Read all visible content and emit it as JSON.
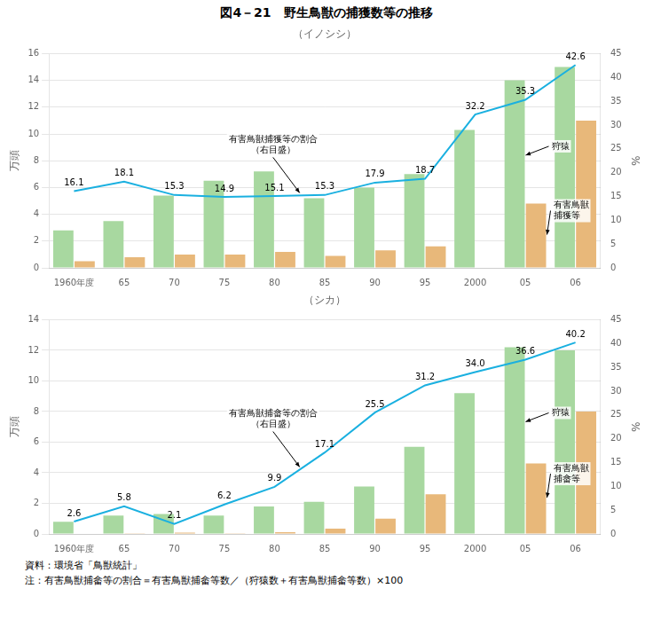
{
  "title": "図4－21　野生鳥獣の捕獲数等の推移",
  "source": "資料：環境省「鳥獣統計」",
  "note": "注：有害鳥獣捕畲等の割合＝有害鳥獣捕畲等数／（狩猿数＋有害鳥獣捕畲等数）×100",
  "chart_data": [
    {
      "type": "bar",
      "subtitle": "（イノシシ）",
      "ylabel": "万頭",
      "y2label": "%",
      "categories": [
        "1960年度",
        "65",
        "70",
        "75",
        "80",
        "85",
        "90",
        "95",
        "2000",
        "05",
        "06"
      ],
      "series": [
        {
          "color": "#a8d8a0",
          "values": [
            2.8,
            3.5,
            5.4,
            6.5,
            7.2,
            5.2,
            6.0,
            7.0,
            10.3,
            14.0,
            15.0
          ]
        },
        {
          "color": "#e8b87a",
          "values": [
            0.5,
            0.8,
            1.0,
            1.0,
            1.2,
            0.9,
            1.3,
            1.6,
            null,
            4.8,
            11.0
          ]
        },
        {
          "type": "line",
          "axis": "y2",
          "color": "#1ab0e0",
          "marker": "none",
          "data_labels": true,
          "values": [
            16.1,
            18.1,
            15.3,
            14.9,
            15.1,
            15.3,
            17.9,
            18.7,
            32.2,
            35.3,
            42.6
          ],
          "value_labels": [
            "16.1",
            "18.1",
            "15.3",
            "14.9",
            "15.1",
            "15.3",
            "17.9",
            "18.7",
            "32.2",
            "35.3",
            "42.6"
          ]
        }
      ],
      "ylim": [
        0,
        16
      ],
      "yticks": [
        0,
        2,
        4,
        6,
        8,
        10,
        12,
        14,
        16
      ],
      "y2lim": [
        0,
        45
      ],
      "y2ticks": [
        0,
        5,
        10,
        15,
        20,
        25,
        30,
        35,
        40,
        45
      ],
      "grid": true,
      "annotations": [
        "有害鳥獣捕獲等の割合\n（右目盛）",
        "狩猿",
        "有害鳥獣\n捕獲等"
      ]
    },
    {
      "type": "bar",
      "subtitle": "（シカ）",
      "ylabel": "万頭",
      "y2label": "%",
      "categories": [
        "1960年度",
        "65",
        "70",
        "75",
        "80",
        "85",
        "90",
        "95",
        "2000",
        "05",
        "06"
      ],
      "series": [
        {
          "color": "#a8d8a0",
          "values": [
            0.8,
            1.2,
            1.3,
            1.2,
            1.8,
            2.1,
            3.1,
            5.7,
            9.2,
            12.2,
            12.0
          ]
        },
        {
          "color": "#e8b87a",
          "values": [
            null,
            0.05,
            0.08,
            0.05,
            0.12,
            0.35,
            1.0,
            2.6,
            null,
            4.6,
            8.0
          ]
        },
        {
          "type": "line",
          "axis": "y2",
          "color": "#1ab0e0",
          "marker": "none",
          "data_labels": true,
          "values": [
            2.6,
            5.8,
            2.1,
            6.2,
            9.9,
            17.1,
            25.5,
            31.2,
            34.0,
            36.6,
            40.2
          ],
          "value_labels": [
            "2.6",
            "5.8",
            "2.1",
            "6.2",
            "9.9",
            "17.1",
            "25.5",
            "31.2",
            "34.0",
            "36.6",
            "40.2"
          ]
        }
      ],
      "ylim": [
        0,
        14
      ],
      "yticks": [
        0,
        2,
        4,
        6,
        8,
        10,
        12,
        14
      ],
      "y2lim": [
        0,
        45
      ],
      "y2ticks": [
        0,
        5,
        10,
        15,
        20,
        25,
        30,
        35,
        40,
        45
      ],
      "grid": true,
      "annotations": [
        "有害鳥獣捕畲等の割合\n（右目盛）",
        "狩猿",
        "有害鳥獣\n捕畲等"
      ]
    }
  ]
}
